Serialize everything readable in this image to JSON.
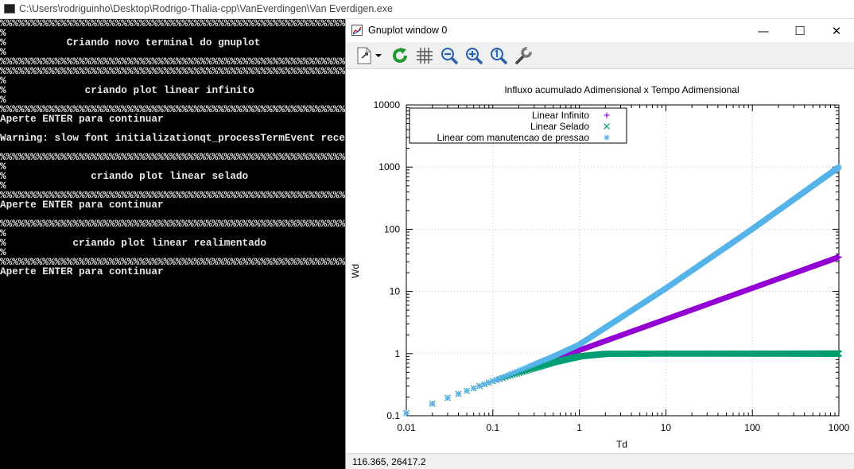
{
  "console": {
    "title": "C:\\Users\\rodriguinho\\Desktop\\Rodrigo-Thalia-cpp\\VanEverdingen\\Van Everdigen.exe",
    "lines": [
      "%%%%%%%%%%%%%%%%%%%%%%%%%%%%%%%%%%%%%%%%%%%%%%%%%%%%%%%%%%%%%%%%",
      "%                                                              %",
      "%          Criando novo terminal do gnuplot                    %",
      "%                                                              %",
      "%%%%%%%%%%%%%%%%%%%%%%%%%%%%%%%%%%%%%%%%%%%%%%%%%%%%%%%%%%%%%%%%",
      "%%%%%%%%%%%%%%%%%%%%%%%%%%%%%%%%%%%%%%%%%%%%%%%%%%%%%%%%%%%%%%%%",
      "%                                                              %",
      "%             criando plot linear infinito                     %",
      "%                                                              %",
      "%%%%%%%%%%%%%%%%%%%%%%%%%%%%%%%%%%%%%%%%%%%%%%%%%%%%%%%%%%%%%%%%",
      "Aperte ENTER para continuar",
      "",
      "Warning: slow font initializationqt_processTermEvent received a GE_fontprops event.",
      "",
      "%%%%%%%%%%%%%%%%%%%%%%%%%%%%%%%%%%%%%%%%%%%%%%%%%%%%%%%%%%%%%%%%",
      "%                                                              %",
      "%              criando plot linear selado                      %",
      "%                                                              %",
      "%%%%%%%%%%%%%%%%%%%%%%%%%%%%%%%%%%%%%%%%%%%%%%%%%%%%%%%%%%%%%%%%",
      "Aperte ENTER para continuar",
      "",
      "%%%%%%%%%%%%%%%%%%%%%%%%%%%%%%%%%%%%%%%%%%%%%%%%%%%%%%%%%%%%%%%%",
      "%                                                              %",
      "%           criando plot linear realimentado                   %",
      "%                                                              %",
      "%%%%%%%%%%%%%%%%%%%%%%%%%%%%%%%%%%%%%%%%%%%%%%%%%%%%%%%%%%%%%%%%",
      "Aperte ENTER para continuar"
    ]
  },
  "gnuplot": {
    "title": "Gnuplot window 0",
    "window_buttons": {
      "minimize": "—",
      "maximize": "☐",
      "close": "✕"
    },
    "toolbar_icons": [
      "export-icon",
      "export-dropdown-icon",
      "replot-icon",
      "grid-icon",
      "zoom-out-icon",
      "zoom-in-icon",
      "zoom-reset-icon",
      "settings-icon"
    ],
    "status": "116.365,  26417.2"
  },
  "colors": {
    "linear_infinito": "#9400d3",
    "linear_selado": "#009e73",
    "linear_manutencao": "#56b4e9"
  },
  "chart_data": {
    "type": "scatter",
    "title": "Influxo acumulado Adimensional x Tempo Adimensional",
    "xlabel": "Td",
    "ylabel": "Wd",
    "xscale": "log",
    "yscale": "log",
    "xlim": [
      0.01,
      1000
    ],
    "ylim": [
      0.1,
      10000
    ],
    "xticks": [
      "0.01",
      "0.1",
      "1",
      "10",
      "100",
      "1000"
    ],
    "yticks": [
      "0.1",
      "1",
      "10",
      "100",
      "1000",
      "10000"
    ],
    "grid": true,
    "legend_position": "top-left",
    "series": [
      {
        "name": "Linear Infinito",
        "marker": "+",
        "x": [
          0.01,
          0.1,
          0.5,
          1,
          10,
          100,
          1000
        ],
        "y": [
          0.11,
          0.36,
          0.8,
          1.13,
          3.57,
          11.3,
          35.7
        ]
      },
      {
        "name": "Linear Selado",
        "marker": "x",
        "x": [
          0.01,
          0.1,
          0.5,
          1,
          2,
          10,
          100,
          1000
        ],
        "y": [
          0.11,
          0.36,
          0.72,
          0.9,
          0.99,
          1.0,
          1.0,
          1.0
        ]
      },
      {
        "name": "Linear com manutencao de pressao",
        "marker": "*",
        "x": [
          0.01,
          0.1,
          0.5,
          1,
          10,
          100,
          1000
        ],
        "y": [
          0.11,
          0.36,
          0.9,
          1.4,
          11.2,
          101,
          1000
        ]
      }
    ]
  }
}
